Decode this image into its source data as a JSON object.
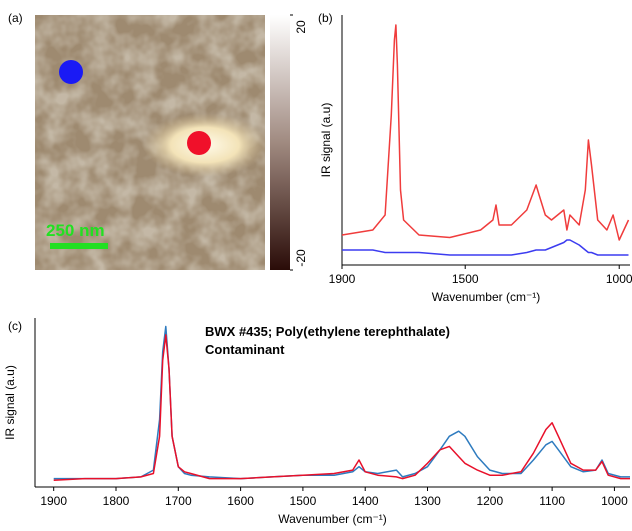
{
  "chart_data": [
    {
      "type": "image",
      "label": "(a)",
      "scale_bar": "250 nm",
      "clim": [
        -20,
        20
      ],
      "cticks": [
        -20,
        20
      ]
    },
    {
      "type": "line",
      "label": "(b)",
      "ylabel": "IR signal (a.u)",
      "xlabel": "Wavenumber (cm⁻¹)",
      "xlim": [
        1900,
        965
      ],
      "xticks": [
        1900,
        1500,
        1000
      ],
      "ylim": [
        0,
        100
      ],
      "x": [
        1900,
        1800,
        1760,
        1740,
        1730,
        1725,
        1720,
        1710,
        1700,
        1650,
        1550,
        1450,
        1410,
        1400,
        1390,
        1350,
        1300,
        1270,
        1260,
        1240,
        1220,
        1180,
        1170,
        1160,
        1130,
        1110,
        1100,
        1090,
        1070,
        1040,
        1020,
        1000,
        970
      ],
      "series": [
        {
          "color": "#f03c3c",
          "values": [
            12,
            14,
            20,
            60,
            90,
            96,
            80,
            30,
            18,
            12,
            11,
            14,
            18,
            24,
            16,
            16,
            22,
            32,
            28,
            20,
            18,
            22,
            14,
            20,
            16,
            30,
            50,
            40,
            18,
            14,
            20,
            10,
            18
          ]
        },
        {
          "color": "#3c3cf0",
          "values": [
            6,
            6,
            5,
            5,
            5,
            5,
            5,
            5,
            5,
            5,
            4,
            4,
            4,
            4,
            4,
            4,
            5,
            6,
            6,
            6,
            7,
            9,
            10,
            10,
            8,
            6,
            5,
            5,
            4,
            4,
            4,
            4,
            4
          ]
        }
      ]
    },
    {
      "type": "line",
      "label": "(c)",
      "ylabel": "IR signal (a.u)",
      "xlabel": "Wavenumber (cm⁻¹)",
      "xlim": [
        1930,
        975
      ],
      "xticks": [
        1900,
        1800,
        1700,
        1600,
        1500,
        1400,
        1300,
        1200,
        1100,
        1000
      ],
      "ylim": [
        0,
        100
      ],
      "x": [
        1900,
        1850,
        1800,
        1760,
        1740,
        1730,
        1725,
        1720,
        1715,
        1710,
        1700,
        1690,
        1680,
        1650,
        1600,
        1550,
        1500,
        1450,
        1420,
        1410,
        1400,
        1380,
        1350,
        1340,
        1320,
        1300,
        1280,
        1265,
        1250,
        1240,
        1220,
        1200,
        1180,
        1150,
        1130,
        1110,
        1100,
        1090,
        1070,
        1050,
        1030,
        1020,
        1010,
        990,
        975
      ],
      "series": [
        {
          "name": "BWX #435; Poly(ethylene terephthalate)",
          "color": "#2e7bbf",
          "values": [
            5,
            5,
            5,
            6,
            10,
            40,
            80,
            95,
            70,
            30,
            12,
            8,
            7,
            6,
            5,
            6,
            7,
            7,
            9,
            12,
            9,
            8,
            10,
            6,
            8,
            12,
            22,
            30,
            33,
            30,
            18,
            10,
            8,
            8,
            16,
            25,
            27,
            22,
            12,
            9,
            10,
            16,
            8,
            6,
            6
          ]
        },
        {
          "name": "Contaminant",
          "color": "#e8102a",
          "values": [
            4,
            5,
            5,
            6,
            8,
            30,
            75,
            90,
            70,
            30,
            12,
            9,
            8,
            5,
            5,
            6,
            7,
            8,
            10,
            16,
            9,
            7,
            6,
            5,
            7,
            14,
            22,
            24,
            18,
            14,
            10,
            7,
            7,
            9,
            20,
            34,
            38,
            30,
            14,
            10,
            10,
            15,
            7,
            5,
            5
          ]
        }
      ]
    }
  ]
}
